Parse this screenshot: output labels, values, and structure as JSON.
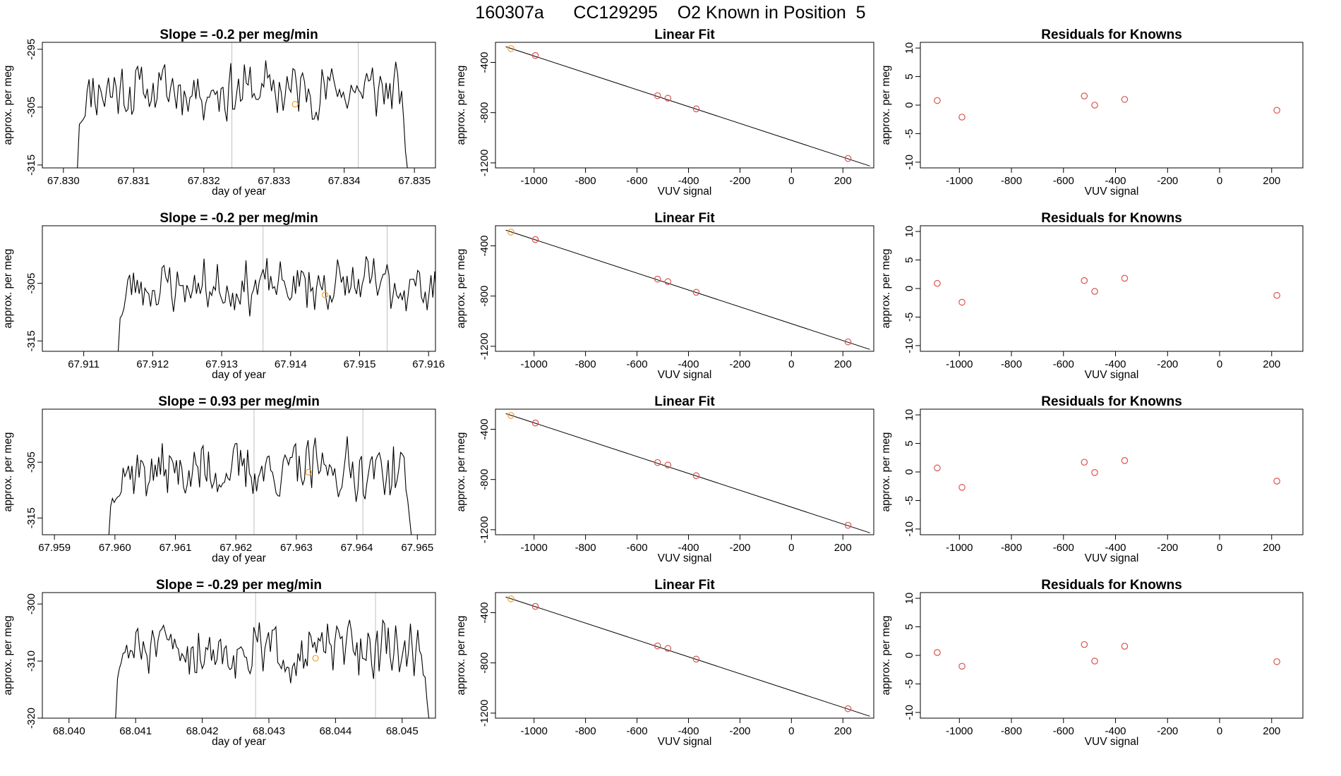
{
  "page_title": "160307a      CC129295    O2 Known in Position  5",
  "colors": {
    "trace": "#000000",
    "fit_line": "#000000",
    "point_red": "#d9534f",
    "point_orange": "#f0a030",
    "vline": "#c0c0c0"
  },
  "chart_data": [
    {
      "type": "line",
      "title": "Slope =  -0.2  per meg/min",
      "xlabel": "day of year",
      "ylabel": "approx. per meg",
      "xlim": [
        67.8297,
        67.8353
      ],
      "ylim": [
        -315.5,
        -293.8
      ],
      "xticks": [
        "67.830",
        "67.831",
        "67.832",
        "67.833",
        "67.834",
        "67.835"
      ],
      "yticks": [
        "-295",
        "-305",
        "-315"
      ],
      "x_range": [
        67.8302,
        67.8349
      ],
      "vlines": [
        67.8324,
        67.8342
      ],
      "highlight": {
        "x": 67.8333,
        "y": -304.5
      },
      "edge_start": -315.5,
      "edge_end": -315.5,
      "rise_level": -309,
      "mean": -302,
      "amplitude": 3.8,
      "noise_seed": 11
    },
    {
      "type": "scatter",
      "title": "Linear Fit",
      "xlabel": "VUV signal",
      "ylabel": "approx. per meg",
      "xlim": [
        -1150,
        320
      ],
      "ylim": [
        -1240,
        -240
      ],
      "xticks": [
        "-1000",
        "-800",
        "-600",
        "-400",
        "-200",
        "0",
        "200"
      ],
      "yticks": [
        "-400",
        "-800",
        "-1200"
      ],
      "points": [
        {
          "x": -1090,
          "y": -290,
          "color": "orange"
        },
        {
          "x": -995,
          "y": -345,
          "color": "red"
        },
        {
          "x": -520,
          "y": -665,
          "color": "red"
        },
        {
          "x": -480,
          "y": -685,
          "color": "red"
        },
        {
          "x": -370,
          "y": -770,
          "color": "red"
        },
        {
          "x": 220,
          "y": -1165,
          "color": "red"
        }
      ],
      "fit_line": {
        "x": [
          -1110,
          305
        ],
        "y": [
          -275,
          -1225
        ]
      }
    },
    {
      "type": "scatter",
      "title": "Residuals for Knowns",
      "xlabel": "VUV signal",
      "ylabel": "approx. per meg",
      "xlim": [
        -1150,
        320
      ],
      "ylim": [
        -11,
        11
      ],
      "xticks": [
        "-1000",
        "-800",
        "-600",
        "-400",
        "-200",
        "0",
        "200"
      ],
      "yticks": [
        "10",
        "5",
        "0",
        "-5",
        "-10"
      ],
      "points": [
        {
          "x": -1085,
          "y": 0.8
        },
        {
          "x": -990,
          "y": -2.1
        },
        {
          "x": -520,
          "y": 1.6
        },
        {
          "x": -480,
          "y": 0.0
        },
        {
          "x": -365,
          "y": 1.0
        },
        {
          "x": 220,
          "y": -0.9
        }
      ]
    },
    {
      "type": "line",
      "title": "Slope =  -0.2  per meg/min",
      "xlabel": "day of year",
      "ylabel": "approx. per meg",
      "xlim": [
        67.9104,
        67.9161
      ],
      "ylim": [
        -316.8,
        -295.0
      ],
      "xticks": [
        "67.911",
        "67.912",
        "67.913",
        "67.914",
        "67.915",
        "67.916"
      ],
      "yticks": [
        "-305",
        "-315"
      ],
      "x_range": [
        67.9115,
        67.9162
      ],
      "vlines": [
        67.9136,
        67.9154
      ],
      "highlight": {
        "x": 67.9145,
        "y": -307.0
      },
      "edge_start": -316.8,
      "edge_end": -316.8,
      "rise_level": -312,
      "mean": -305.5,
      "amplitude": 3.6,
      "noise_seed": 23
    },
    {
      "type": "scatter",
      "title": "Linear Fit",
      "xlabel": "VUV signal",
      "ylabel": "approx. per meg",
      "xlim": [
        -1150,
        320
      ],
      "ylim": [
        -1240,
        -240
      ],
      "xticks": [
        "-1000",
        "-800",
        "-600",
        "-400",
        "-200",
        "0",
        "200"
      ],
      "yticks": [
        "-400",
        "-800",
        "-1200"
      ],
      "points": [
        {
          "x": -1090,
          "y": -290,
          "color": "orange"
        },
        {
          "x": -995,
          "y": -350,
          "color": "red"
        },
        {
          "x": -520,
          "y": -665,
          "color": "red"
        },
        {
          "x": -480,
          "y": -685,
          "color": "red"
        },
        {
          "x": -370,
          "y": -770,
          "color": "red"
        },
        {
          "x": 220,
          "y": -1165,
          "color": "red"
        }
      ],
      "fit_line": {
        "x": [
          -1110,
          305
        ],
        "y": [
          -275,
          -1225
        ]
      }
    },
    {
      "type": "scatter",
      "title": "Residuals for Knowns",
      "xlabel": "VUV signal",
      "ylabel": "approx. per meg",
      "xlim": [
        -1150,
        320
      ],
      "ylim": [
        -11,
        11
      ],
      "xticks": [
        "-1000",
        "-800",
        "-600",
        "-400",
        "-200",
        "0",
        "200"
      ],
      "yticks": [
        "10",
        "5",
        "0",
        "-5",
        "-10"
      ],
      "points": [
        {
          "x": -1085,
          "y": 0.9
        },
        {
          "x": -990,
          "y": -2.4
        },
        {
          "x": -520,
          "y": 1.4
        },
        {
          "x": -480,
          "y": -0.5
        },
        {
          "x": -365,
          "y": 1.8
        },
        {
          "x": 220,
          "y": -1.2
        }
      ]
    },
    {
      "type": "line",
      "title": "Slope =  0.93  per meg/min",
      "xlabel": "day of year",
      "ylabel": "approx. per meg",
      "xlim": [
        67.9588,
        67.9653
      ],
      "ylim": [
        -318.0,
        -295.5
      ],
      "xticks": [
        "67.959",
        "67.960",
        "67.961",
        "67.962",
        "67.963",
        "67.964",
        "67.965"
      ],
      "yticks": [
        "-305",
        "-315"
      ],
      "x_range": [
        67.9599,
        67.9649
      ],
      "vlines": [
        67.9623,
        67.9641
      ],
      "highlight": {
        "x": 67.9632,
        "y": -306.8
      },
      "edge_start": -318.0,
      "edge_end": -318.0,
      "rise_level": -314,
      "mean": -306.5,
      "amplitude": 4.0,
      "noise_seed": 37
    },
    {
      "type": "scatter",
      "title": "Linear Fit",
      "xlabel": "VUV signal",
      "ylabel": "approx. per meg",
      "xlim": [
        -1150,
        320
      ],
      "ylim": [
        -1240,
        -240
      ],
      "xticks": [
        "-1000",
        "-800",
        "-600",
        "-400",
        "-200",
        "0",
        "200"
      ],
      "yticks": [
        "-400",
        "-800",
        "-1200"
      ],
      "points": [
        {
          "x": -1090,
          "y": -290,
          "color": "orange"
        },
        {
          "x": -995,
          "y": -350,
          "color": "red"
        },
        {
          "x": -520,
          "y": -665,
          "color": "red"
        },
        {
          "x": -480,
          "y": -685,
          "color": "red"
        },
        {
          "x": -370,
          "y": -770,
          "color": "red"
        },
        {
          "x": 220,
          "y": -1165,
          "color": "red"
        }
      ],
      "fit_line": {
        "x": [
          -1110,
          305
        ],
        "y": [
          -275,
          -1225
        ]
      }
    },
    {
      "type": "scatter",
      "title": "Residuals for Knowns",
      "xlabel": "VUV signal",
      "ylabel": "approx. per meg",
      "xlim": [
        -1150,
        320
      ],
      "ylim": [
        -11,
        11
      ],
      "xticks": [
        "-1000",
        "-800",
        "-600",
        "-400",
        "-200",
        "0",
        "200"
      ],
      "yticks": [
        "10",
        "5",
        "0",
        "-5",
        "-10"
      ],
      "points": [
        {
          "x": -1085,
          "y": 0.7
        },
        {
          "x": -990,
          "y": -2.7
        },
        {
          "x": -520,
          "y": 1.7
        },
        {
          "x": -480,
          "y": -0.1
        },
        {
          "x": -365,
          "y": 2.0
        },
        {
          "x": 220,
          "y": -1.6
        }
      ]
    },
    {
      "type": "line",
      "title": "Slope =  -0.29  per meg/min",
      "xlabel": "day of year",
      "ylabel": "approx. per meg",
      "xlim": [
        68.0396,
        68.0455
      ],
      "ylim": [
        -320.0,
        -298.0
      ],
      "xticks": [
        "68.040",
        "68.041",
        "68.042",
        "68.043",
        "68.044",
        "68.045"
      ],
      "yticks": [
        "-300",
        "-310",
        "-320"
      ],
      "x_range": [
        68.0407,
        68.0454
      ],
      "vlines": [
        68.0428,
        68.0446
      ],
      "highlight": {
        "x": 68.0437,
        "y": -309.5
      },
      "edge_start": -320.0,
      "edge_end": -320.0,
      "rise_level": -314,
      "mean": -308,
      "amplitude": 3.8,
      "noise_seed": 51
    },
    {
      "type": "scatter",
      "title": "Linear Fit",
      "xlabel": "VUV signal",
      "ylabel": "approx. per meg",
      "xlim": [
        -1150,
        320
      ],
      "ylim": [
        -1240,
        -240
      ],
      "xticks": [
        "-1000",
        "-800",
        "-600",
        "-400",
        "-200",
        "0",
        "200"
      ],
      "yticks": [
        "-400",
        "-800",
        "-1200"
      ],
      "points": [
        {
          "x": -1090,
          "y": -290,
          "color": "orange"
        },
        {
          "x": -995,
          "y": -350,
          "color": "red"
        },
        {
          "x": -520,
          "y": -665,
          "color": "red"
        },
        {
          "x": -480,
          "y": -685,
          "color": "red"
        },
        {
          "x": -370,
          "y": -770,
          "color": "red"
        },
        {
          "x": 220,
          "y": -1165,
          "color": "red"
        }
      ],
      "fit_line": {
        "x": [
          -1110,
          305
        ],
        "y": [
          -275,
          -1225
        ]
      }
    },
    {
      "type": "scatter",
      "title": "Residuals for Knowns",
      "xlabel": "VUV signal",
      "ylabel": "approx. per meg",
      "xlim": [
        -1150,
        320
      ],
      "ylim": [
        -11,
        11
      ],
      "xticks": [
        "-1000",
        "-800",
        "-600",
        "-400",
        "-200",
        "0",
        "200"
      ],
      "yticks": [
        "10",
        "5",
        "0",
        "-5",
        "-10"
      ],
      "points": [
        {
          "x": -1085,
          "y": 0.5
        },
        {
          "x": -990,
          "y": -1.9
        },
        {
          "x": -520,
          "y": 1.9
        },
        {
          "x": -480,
          "y": -1.0
        },
        {
          "x": -365,
          "y": 1.6
        },
        {
          "x": 220,
          "y": -1.1
        }
      ]
    }
  ]
}
